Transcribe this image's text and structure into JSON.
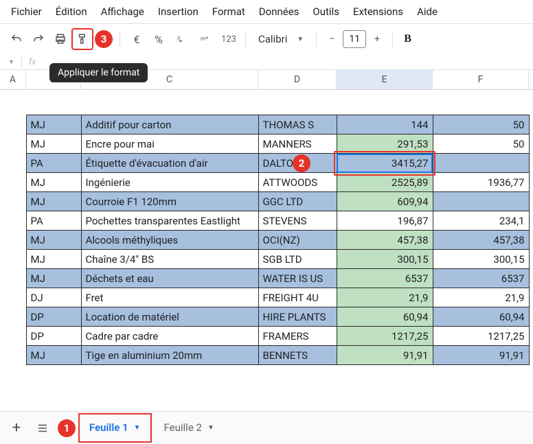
{
  "menus": [
    "Fichier",
    "Édition",
    "Affichage",
    "Insertion",
    "Format",
    "Données",
    "Outils",
    "Extensions",
    "Aide"
  ],
  "toolbar": {
    "tooltip": "Appliquer le format",
    "font_name": "Calibri",
    "font_size": "11",
    "percent": "%",
    "currency": "€",
    "number123": "123"
  },
  "annotations": {
    "a1": "1",
    "a2": "2",
    "a3": "3"
  },
  "columns": [
    "A",
    "B",
    "C",
    "D",
    "E",
    "F"
  ],
  "selected_col": "E",
  "rows": [
    {
      "shade": true,
      "b": "MJ",
      "c": "Additif pour carton",
      "d": "THOMAS S",
      "e": "144",
      "e_green": false,
      "f": "50"
    },
    {
      "shade": false,
      "b": "MJ",
      "c": "Encre pour mai",
      "d": "MANNERS",
      "e": "291,53",
      "e_green": true,
      "f": "50"
    },
    {
      "shade": true,
      "b": "PA",
      "c": "Étiquette d'évacuation d'air",
      "d": "DALTONS",
      "e": "3415,27",
      "e_green": false,
      "f": "",
      "selected": true
    },
    {
      "shade": false,
      "b": "MJ",
      "c": "Ingénierie",
      "d": "ATTWOODS",
      "e": "2525,89",
      "e_green": true,
      "f": "1936,77"
    },
    {
      "shade": true,
      "b": "MJ",
      "c": "Courroie F1 120mm",
      "d": "GGC LTD",
      "e": "609,94",
      "e_green": true,
      "f": ""
    },
    {
      "shade": false,
      "b": "PA",
      "c": "Pochettes transparentes Eastlight",
      "d": "STEVENS",
      "e": "196,87",
      "e_green": false,
      "f": "234,1"
    },
    {
      "shade": true,
      "b": "MJ",
      "c": "Alcools méthyliques",
      "d": "OCI(NZ)",
      "e": "457,38",
      "e_green": true,
      "f": "457,38"
    },
    {
      "shade": false,
      "b": "MJ",
      "c": "Chaîne 3/4\" BS",
      "d": "SGB LTD",
      "e": "300,15",
      "e_green": true,
      "f": "300,15"
    },
    {
      "shade": true,
      "b": "MJ",
      "c": "Déchets et eau",
      "d": "WATER IS US",
      "e": "6537",
      "e_green": true,
      "f": "6537"
    },
    {
      "shade": false,
      "b": "DJ",
      "c": "Fret",
      "d": "FREIGHT 4U",
      "e": "21,9",
      "e_green": true,
      "f": "21,9"
    },
    {
      "shade": true,
      "b": "DP",
      "c": "Location de matériel",
      "d": "HIRE PLANTS",
      "e": "60,94",
      "e_green": true,
      "f": "60,94"
    },
    {
      "shade": false,
      "b": "DP",
      "c": "Cadre par cadre",
      "d": "FRAMERS",
      "e": "1217,25",
      "e_green": true,
      "f": "1217,25"
    },
    {
      "shade": true,
      "b": "MJ",
      "c": "Tige en aluminium 20mm",
      "d": "BENNETS",
      "e": "91,91",
      "e_green": true,
      "f": "91,91"
    }
  ],
  "tabs": {
    "t1": "Feuille 1",
    "t2": "Feuille 2"
  },
  "colors": {
    "shade": "#a6c0de",
    "green": "#c0e0c2",
    "annot": "#e6332a",
    "select": "#1a73e8"
  }
}
